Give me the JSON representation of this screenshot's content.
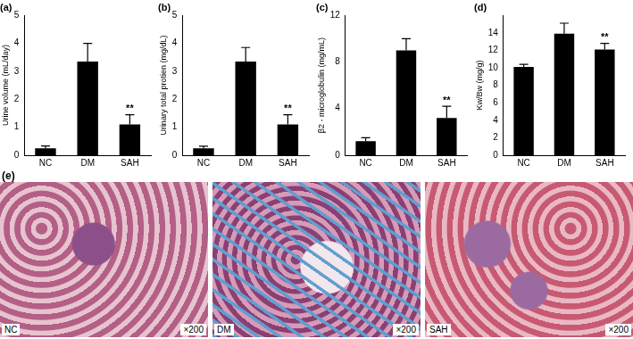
{
  "chart_data": [
    {
      "type": "bar",
      "title": "(a)",
      "y_label": "Urine volume (mL/day)",
      "categories": [
        "NC",
        "DM",
        "SAH"
      ],
      "values": [
        0.25,
        3.35,
        1.1
      ],
      "errors": [
        0.08,
        0.65,
        0.35
      ],
      "color": "#000000",
      "ylim": [
        0,
        5
      ],
      "yticks": [
        0,
        1,
        2,
        3,
        4,
        5
      ],
      "grid": false,
      "annotations": [
        {
          "category": "SAH",
          "text": "**"
        }
      ]
    },
    {
      "type": "bar",
      "title": "(b)",
      "y_label": "Urinary total protien (mg/dL)",
      "categories": [
        "NC",
        "DM",
        "SAH"
      ],
      "values": [
        0.25,
        3.35,
        1.1
      ],
      "errors": [
        0.07,
        0.5,
        0.35
      ],
      "color": "#000000",
      "ylim": [
        0,
        5
      ],
      "yticks": [
        0,
        1,
        2,
        3,
        4,
        5
      ],
      "grid": false,
      "annotations": [
        {
          "category": "SAH",
          "text": "**"
        }
      ]
    },
    {
      "type": "bar",
      "title": "(c)",
      "y_label": "β2 - microglobulin (mg/mL)",
      "categories": [
        "NC",
        "DM",
        "SAH"
      ],
      "values": [
        1.2,
        9.0,
        3.2
      ],
      "errors": [
        0.3,
        1.0,
        1.0
      ],
      "color": "#000000",
      "ylim": [
        0,
        12
      ],
      "yticks": [
        0,
        4,
        8,
        12
      ],
      "grid": false,
      "annotations": [
        {
          "category": "SAH",
          "text": "**"
        }
      ]
    },
    {
      "type": "bar",
      "title": "(d)",
      "y_label": "Kw/Bw (mg/g)",
      "categories": [
        "NC",
        "DM",
        "SAH"
      ],
      "values": [
        10.1,
        13.9,
        12.1
      ],
      "errors": [
        0.3,
        1.2,
        0.7
      ],
      "color": "#000000",
      "ylim": [
        0,
        16
      ],
      "yticks": [
        0,
        2,
        4,
        6,
        8,
        10,
        12,
        14
      ],
      "grid": false,
      "annotations": [
        {
          "category": "SAH",
          "text": "**"
        }
      ]
    }
  ],
  "images": {
    "label": "(e)",
    "panels": [
      {
        "label": "NC",
        "magnification": "×200"
      },
      {
        "label": "DM",
        "magnification": "×200"
      },
      {
        "label": "SAH",
        "magnification": "×200"
      }
    ]
  }
}
